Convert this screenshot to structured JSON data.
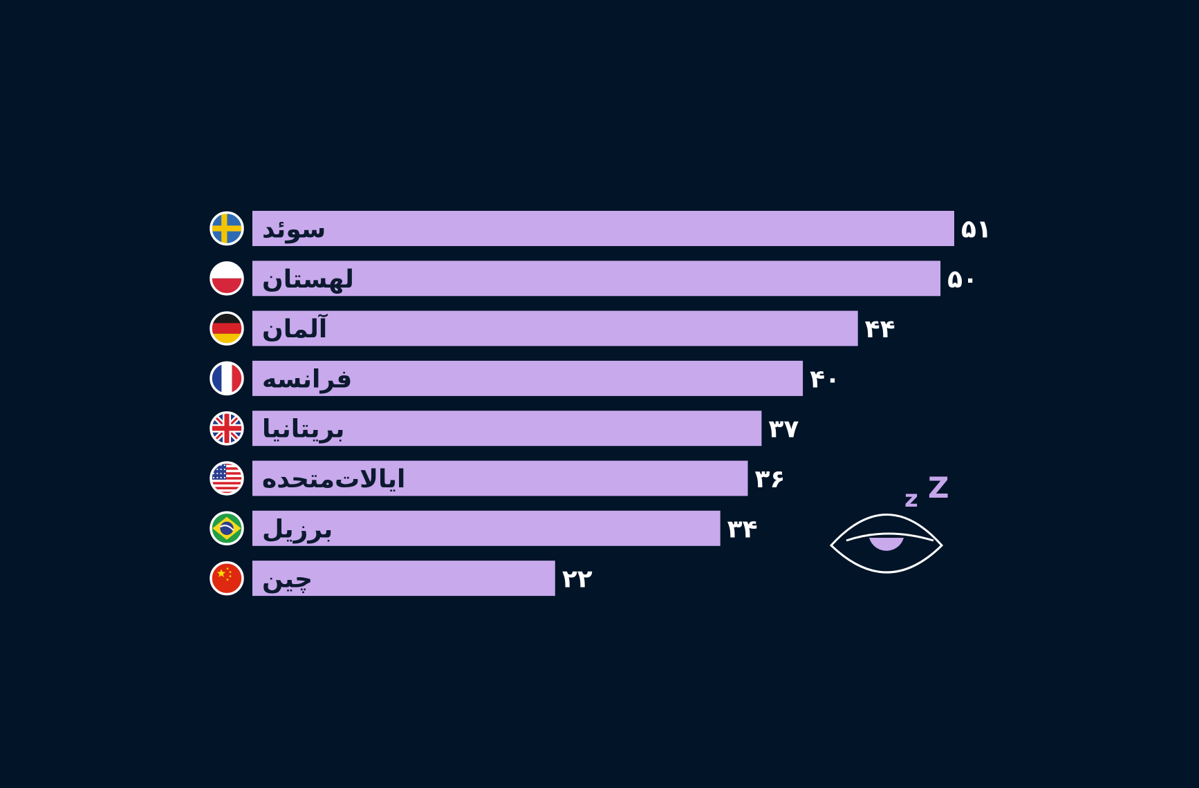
{
  "chart_data": {
    "type": "bar",
    "orientation": "horizontal",
    "categories": [
      "سوئد",
      "لهستان",
      "آلمان",
      "فرانسه",
      "بریتانیا",
      "ایالات‌متحده",
      "برزیل",
      "چین"
    ],
    "values": [
      51,
      50,
      44,
      40,
      37,
      36,
      34,
      22
    ],
    "value_labels": [
      "۵۱",
      "۵۰",
      "۴۴",
      "۴۰",
      "۳۷",
      "۳۶",
      "۳۴",
      "۲۲"
    ],
    "flags": [
      "sweden-flag-icon",
      "poland-flag-icon",
      "germany-flag-icon",
      "france-flag-icon",
      "uk-flag-icon",
      "usa-flag-icon",
      "brazil-flag-icon",
      "china-flag-icon"
    ],
    "xlim": [
      0,
      51
    ],
    "grid": false,
    "legend": "none",
    "colors": {
      "bar": "#c8a9ec",
      "background": "#011428",
      "value_text": "#ffffff",
      "bar_text": "#0b1a2e"
    }
  },
  "decoration": {
    "icon": "sleeping-eye-icon",
    "zz_small": "z",
    "zz_large": "Z"
  }
}
